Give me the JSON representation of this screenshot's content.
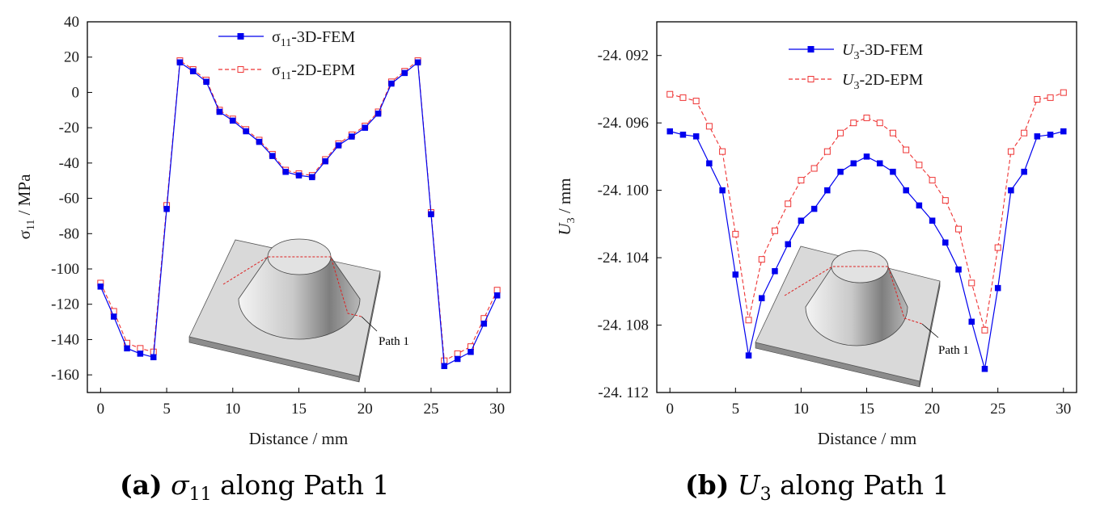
{
  "chart_data": [
    {
      "type": "line",
      "panel": "a",
      "caption_bold": "(a)",
      "caption_text": "σ11 along Path 1",
      "xlabel": "Distance / mm",
      "ylabel": "σ11 / MPa",
      "xlim": [
        -1,
        31
      ],
      "ylim": [
        -170,
        40
      ],
      "xticks": [
        0,
        5,
        10,
        15,
        20,
        25,
        30
      ],
      "yticks": [
        40,
        20,
        0,
        -20,
        -40,
        -60,
        -80,
        -100,
        -120,
        -140,
        -160
      ],
      "xtick_labels": [
        "0",
        "5",
        "10",
        "15",
        "20",
        "25",
        "30"
      ],
      "ytick_labels": [
        "40",
        "20",
        "0",
        "-20",
        "-40",
        "-60",
        "-80",
        "-100",
        "-120",
        "-140",
        "-160"
      ],
      "legend_position": "top-center",
      "inset_label": "Path 1",
      "x": [
        0,
        1,
        2,
        3,
        4,
        5,
        6,
        7,
        8,
        9,
        10,
        11,
        12,
        13,
        14,
        15,
        16,
        17,
        18,
        19,
        20,
        21,
        22,
        23,
        24,
        25,
        26,
        27,
        28,
        29,
        30
      ],
      "series": [
        {
          "name": "σ11-3D-FEM",
          "style": "solid-filled-square",
          "color": "#0000ee",
          "values": [
            -110,
            -127,
            -145,
            -148,
            -150,
            -66,
            17,
            12,
            6,
            -11,
            -16,
            -22,
            -28,
            -36,
            -45,
            -47,
            -48,
            -39,
            -30,
            -25,
            -20,
            -12,
            5,
            11,
            17,
            -69,
            -155,
            -151,
            -147,
            -131,
            -115
          ]
        },
        {
          "name": "σ11-2D-EPM",
          "style": "dashed-open-square",
          "color": "#ee3333",
          "values": [
            -108,
            -124,
            -142,
            -145,
            -147,
            -64,
            18,
            13,
            7,
            -10,
            -15,
            -21,
            -27,
            -35,
            -44,
            -46,
            -47,
            -38,
            -29,
            -24,
            -19,
            -11,
            6,
            12,
            18,
            -68,
            -152,
            -148,
            -144,
            -128,
            -112
          ]
        }
      ]
    },
    {
      "type": "line",
      "panel": "b",
      "caption_bold": "(b)",
      "caption_text": "U3 along Path 1",
      "xlabel": "Distance / mm",
      "ylabel": "U3 / mm",
      "xlim": [
        -1,
        31
      ],
      "ylim": [
        -24.112,
        -24.09
      ],
      "xticks": [
        0,
        5,
        10,
        15,
        20,
        25,
        30
      ],
      "yticks": [
        -24.092,
        -24.096,
        -24.1,
        -24.104,
        -24.108,
        -24.112
      ],
      "xtick_labels": [
        "0",
        "5",
        "10",
        "15",
        "20",
        "25",
        "30"
      ],
      "ytick_labels": [
        "-24. 092",
        "-24. 096",
        "-24. 100",
        "-24. 104",
        "-24. 108",
        "-24. 112"
      ],
      "legend_position": "top-center",
      "inset_label": "Path 1",
      "x": [
        0,
        1,
        2,
        3,
        4,
        5,
        6,
        7,
        8,
        9,
        10,
        11,
        12,
        13,
        14,
        15,
        16,
        17,
        18,
        19,
        20,
        21,
        22,
        23,
        24,
        25,
        26,
        27,
        28,
        29,
        30
      ],
      "series": [
        {
          "name": "U3-3D-FEM",
          "style": "solid-filled-square",
          "color": "#0000ee",
          "values": [
            -24.0965,
            -24.0967,
            -24.0968,
            -24.0984,
            -24.1,
            -24.105,
            -24.1098,
            -24.1064,
            -24.1048,
            -24.1032,
            -24.1018,
            -24.1011,
            -24.1,
            -24.0989,
            -24.0984,
            -24.098,
            -24.0984,
            -24.0989,
            -24.1,
            -24.1009,
            -24.1018,
            -24.1031,
            -24.1047,
            -24.1078,
            -24.1106,
            -24.1058,
            -24.1,
            -24.0989,
            -24.0968,
            -24.0967,
            -24.0965
          ]
        },
        {
          "name": "U3-2D-EPM",
          "style": "dashed-open-square",
          "color": "#ee3333",
          "values": [
            -24.0943,
            -24.0945,
            -24.0947,
            -24.0962,
            -24.0977,
            -24.1026,
            -24.1077,
            -24.1041,
            -24.1024,
            -24.1008,
            -24.0994,
            -24.0987,
            -24.0977,
            -24.0966,
            -24.096,
            -24.0957,
            -24.096,
            -24.0966,
            -24.0976,
            -24.0985,
            -24.0994,
            -24.1006,
            -24.1023,
            -24.1055,
            -24.1083,
            -24.1034,
            -24.0977,
            -24.0966,
            -24.0946,
            -24.0945,
            -24.0942
          ]
        }
      ]
    }
  ]
}
